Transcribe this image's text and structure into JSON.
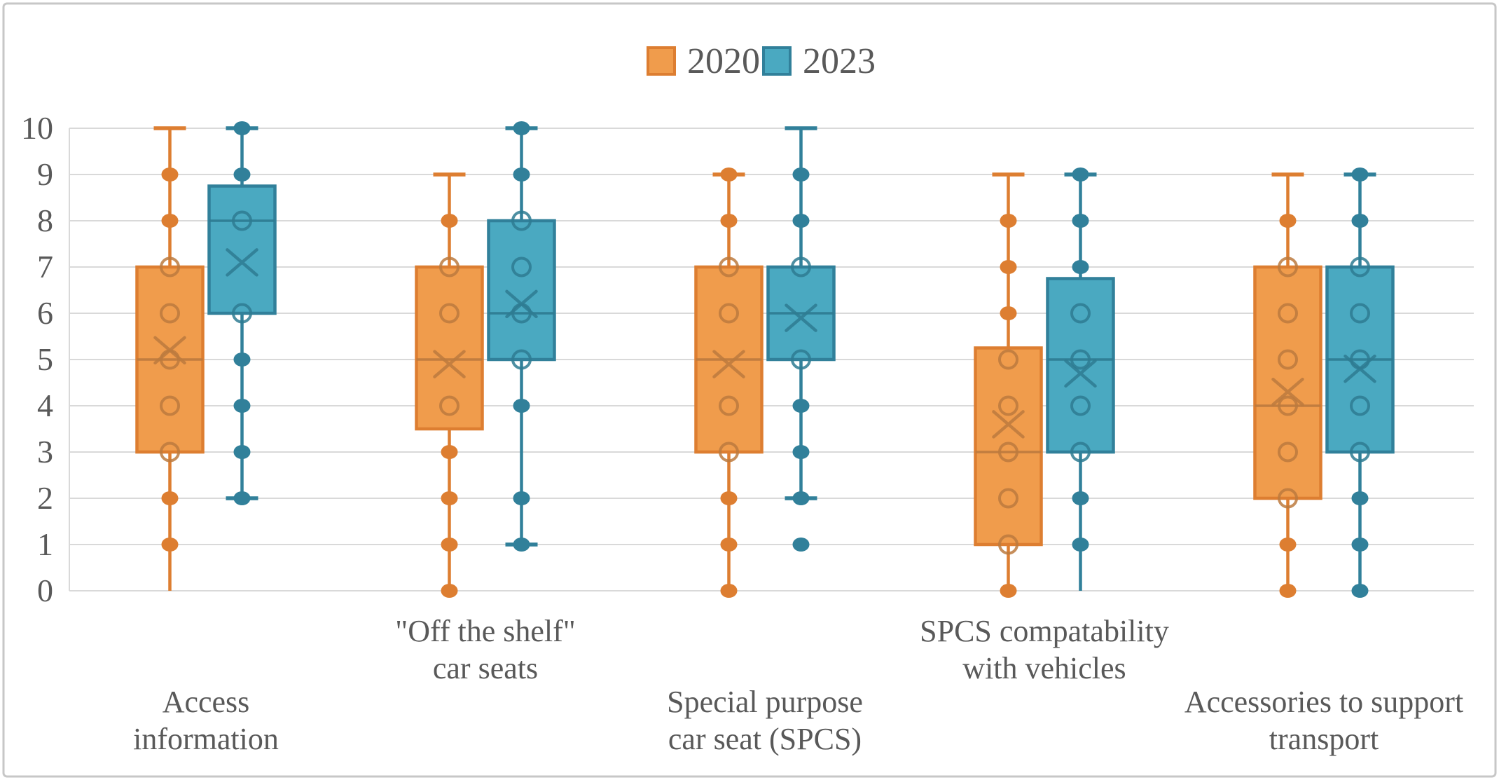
{
  "chart_data": {
    "type": "grouped_boxplot",
    "title": "",
    "ylabel": "",
    "xlabel": "",
    "ylim": [
      0,
      10
    ],
    "yticks": [
      0,
      1,
      2,
      3,
      4,
      5,
      6,
      7,
      8,
      9,
      10
    ],
    "grid": "horizontal",
    "colors": {
      "grid": "#D9D9D9",
      "border": "#C7C7C7",
      "text": "#595959",
      "orange_fill": "#F09C4C",
      "orange_stroke": "#DD7E31",
      "orange_detail": "#BC7A3E",
      "teal_fill": "#4AA9C1",
      "teal_stroke": "#31809A",
      "teal_detail": "#2E7B92"
    },
    "legend": {
      "position": "top-center",
      "entries": [
        {
          "label": "2020",
          "fill": "#F09C4C",
          "stroke": "#DD7E31"
        },
        {
          "label": "2023",
          "fill": "#4AA9C1",
          "stroke": "#31809A"
        }
      ]
    },
    "categories": [
      {
        "lines": [
          "Access",
          "information"
        ],
        "row": "lower"
      },
      {
        "lines": [
          "\"Off the shelf\"",
          "car seats"
        ],
        "row": "upper"
      },
      {
        "lines": [
          "Special purpose",
          "car seat (SPCS)"
        ],
        "row": "lower"
      },
      {
        "lines": [
          "SPCS compatability",
          "with vehicles"
        ],
        "row": "upper"
      },
      {
        "lines": [
          "Accessories to support",
          "transport"
        ],
        "row": "lower"
      }
    ],
    "series": [
      {
        "name": "2020",
        "fill": "#F09C4C",
        "stroke": "#DD7E31",
        "detail": "#BC7A3E",
        "boxes": [
          {
            "whisker_low": 0,
            "q1": 3,
            "median": 5,
            "q3": 7,
            "whisker_high": 10,
            "mean": 5.2,
            "cap_top": true,
            "cap_bottom": false,
            "whisker_dots": [
              9,
              8,
              2,
              1
            ],
            "ring_dots": [
              7,
              6,
              5,
              4,
              3
            ],
            "outliers": []
          },
          {
            "whisker_low": 0,
            "q1": 3.5,
            "median": 5,
            "q3": 7,
            "whisker_high": 9,
            "mean": 4.9,
            "cap_top": true,
            "cap_bottom": false,
            "whisker_dots": [
              8,
              3,
              2,
              1,
              0
            ],
            "ring_dots": [
              7,
              6,
              4
            ],
            "outliers": []
          },
          {
            "whisker_low": 0,
            "q1": 3,
            "median": 5,
            "q3": 7,
            "whisker_high": 9,
            "mean": 4.9,
            "cap_top": true,
            "cap_bottom": false,
            "whisker_dots": [
              9,
              8,
              2,
              1,
              0
            ],
            "ring_dots": [
              7,
              6,
              4,
              3
            ],
            "outliers": []
          },
          {
            "whisker_low": 0,
            "q1": 1,
            "median": 3,
            "q3": 5.25,
            "whisker_high": 9,
            "mean": 3.6,
            "cap_top": true,
            "cap_bottom": false,
            "whisker_dots": [
              8,
              7,
              6,
              0
            ],
            "ring_dots": [
              5,
              4,
              3,
              2,
              1
            ],
            "outliers": []
          },
          {
            "whisker_low": 0,
            "q1": 2,
            "median": 4,
            "q3": 7,
            "whisker_high": 9,
            "mean": 4.3,
            "cap_top": true,
            "cap_bottom": false,
            "whisker_dots": [
              8,
              1,
              0
            ],
            "ring_dots": [
              7,
              6,
              5,
              4,
              3,
              2
            ],
            "outliers": []
          }
        ]
      },
      {
        "name": "2023",
        "fill": "#4AA9C1",
        "stroke": "#31809A",
        "detail": "#2E7B92",
        "boxes": [
          {
            "whisker_low": 2,
            "q1": 6,
            "median": 8,
            "q3": 8.75,
            "whisker_high": 10,
            "mean": 7.1,
            "cap_top": true,
            "cap_bottom": true,
            "whisker_dots": [
              10,
              9,
              5,
              4,
              3,
              2
            ],
            "ring_dots": [
              8,
              6
            ],
            "outliers": []
          },
          {
            "whisker_low": 1,
            "q1": 5,
            "median": 6,
            "q3": 8,
            "whisker_high": 10,
            "mean": 6.2,
            "cap_top": true,
            "cap_bottom": true,
            "whisker_dots": [
              10,
              9,
              4,
              2,
              1
            ],
            "ring_dots": [
              8,
              7,
              6,
              5
            ],
            "outliers": []
          },
          {
            "whisker_low": 2,
            "q1": 5,
            "median": 6,
            "q3": 7,
            "whisker_high": 10,
            "mean": 5.9,
            "cap_top": true,
            "cap_bottom": true,
            "whisker_dots": [
              9,
              8,
              4,
              3,
              2
            ],
            "ring_dots": [
              7,
              5
            ],
            "outliers": [
              1
            ]
          },
          {
            "whisker_low": 0,
            "q1": 3,
            "median": 5,
            "q3": 6.75,
            "whisker_high": 9,
            "mean": 4.7,
            "cap_top": true,
            "cap_bottom": false,
            "whisker_dots": [
              9,
              8,
              7,
              2,
              1
            ],
            "ring_dots": [
              6,
              5,
              4,
              3
            ],
            "outliers": []
          },
          {
            "whisker_low": 0,
            "q1": 3,
            "median": 5,
            "q3": 7,
            "whisker_high": 9,
            "mean": 4.8,
            "cap_top": true,
            "cap_bottom": false,
            "whisker_dots": [
              9,
              8,
              2,
              1,
              0
            ],
            "ring_dots": [
              7,
              6,
              5,
              4,
              3
            ],
            "outliers": []
          }
        ]
      }
    ]
  }
}
